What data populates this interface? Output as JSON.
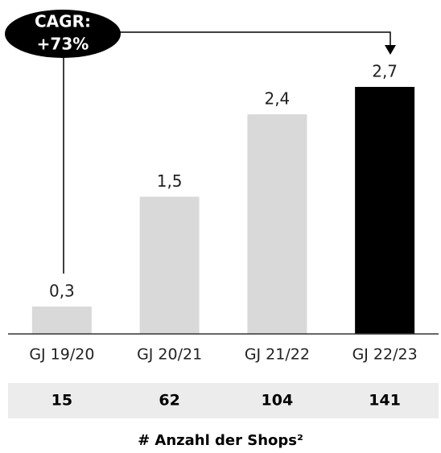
{
  "chart_data": {
    "type": "bar",
    "categories": [
      "GJ 19/20",
      "GJ 20/21",
      "GJ 21/22",
      "GJ 22/23"
    ],
    "values": [
      0.3,
      1.5,
      2.4,
      2.7
    ],
    "value_labels": [
      "0,3",
      "1,5",
      "2,4",
      "2,7"
    ],
    "colors": [
      "#d9d9d9",
      "#d9d9d9",
      "#d9d9d9",
      "#000000"
    ],
    "annotation": [
      "CAGR:",
      "+73%"
    ],
    "table": {
      "values": [
        "15",
        "62",
        "104",
        "141"
      ],
      "label": "# Anzahl der Shops²"
    }
  }
}
